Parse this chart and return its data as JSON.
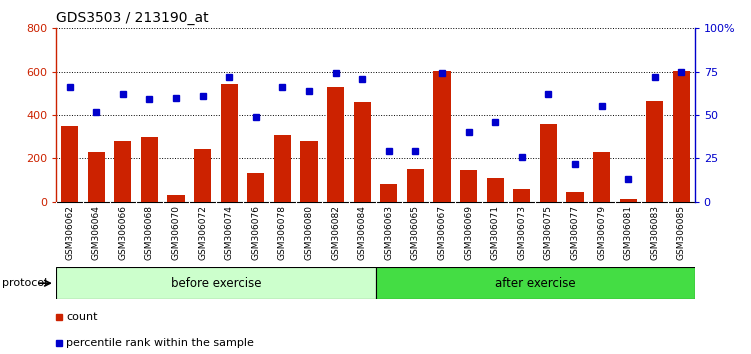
{
  "title": "GDS3503 / 213190_at",
  "categories": [
    "GSM306062",
    "GSM306064",
    "GSM306066",
    "GSM306068",
    "GSM306070",
    "GSM306072",
    "GSM306074",
    "GSM306076",
    "GSM306078",
    "GSM306080",
    "GSM306082",
    "GSM306084",
    "GSM306063",
    "GSM306065",
    "GSM306067",
    "GSM306069",
    "GSM306071",
    "GSM306073",
    "GSM306075",
    "GSM306077",
    "GSM306079",
    "GSM306081",
    "GSM306083",
    "GSM306085"
  ],
  "bar_values": [
    350,
    230,
    280,
    300,
    30,
    245,
    545,
    135,
    310,
    280,
    530,
    460,
    80,
    150,
    605,
    145,
    110,
    60,
    360,
    45,
    230,
    15,
    465,
    605
  ],
  "percentile_values": [
    66,
    52,
    62,
    59,
    60,
    61,
    72,
    49,
    66,
    64,
    74,
    71,
    29,
    29,
    74,
    40,
    46,
    26,
    62,
    22,
    55,
    13,
    72,
    75
  ],
  "bar_color": "#cc2200",
  "dot_color": "#0000cc",
  "grid_color": "#000000",
  "bg_color": "#ffffff",
  "ylim_left": [
    0,
    800
  ],
  "ylim_right": [
    0,
    100
  ],
  "yticks_left": [
    0,
    200,
    400,
    600,
    800
  ],
  "yticks_right": [
    0,
    25,
    50,
    75,
    100
  ],
  "yticklabels_right": [
    "0",
    "25",
    "50",
    "75",
    "100%"
  ],
  "before_exercise_count": 12,
  "after_exercise_count": 12,
  "protocol_label": "protocol",
  "before_label": "before exercise",
  "after_label": "after exercise",
  "before_color": "#ccffcc",
  "after_color": "#44dd44",
  "legend_count_label": "count",
  "legend_pct_label": "percentile rank within the sample",
  "title_fontsize": 10,
  "tick_fontsize": 8,
  "xlabel_fontsize": 6.5
}
